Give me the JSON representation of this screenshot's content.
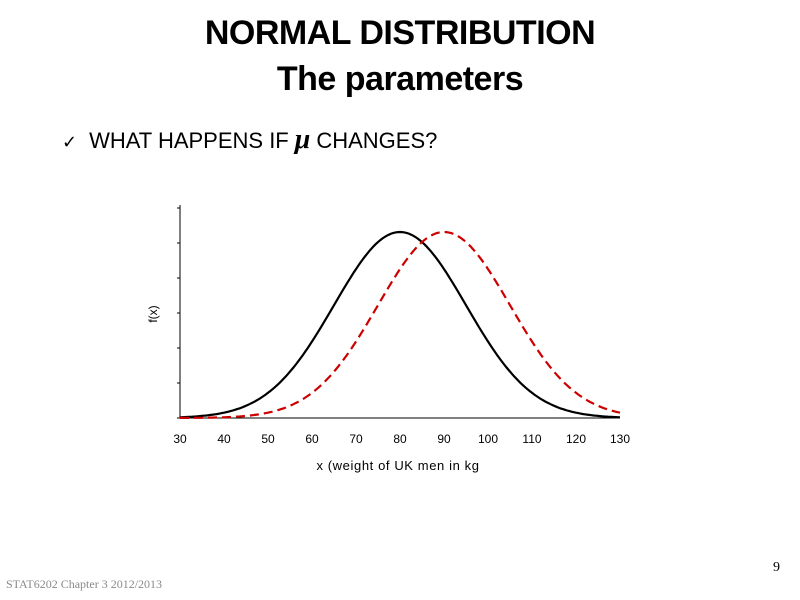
{
  "slide": {
    "title_line1": "NORMAL DISTRIBUTION",
    "title_line2": "The parameters",
    "bullet_prefix": "WHAT HAPPENS IF",
    "bullet_symbol": "μ",
    "bullet_suffix": "CHANGES?",
    "check_icon": "check-icon",
    "footer": "STAT6202 Chapter 3 2012/2013",
    "page_number": "9"
  },
  "chart_data": {
    "type": "line",
    "xlabel": "x (weight of UK men in kg",
    "ylabel": "f(x)",
    "xlim": [
      30,
      130
    ],
    "xticks": [
      "30",
      "40",
      "50",
      "60",
      "70",
      "80",
      "90",
      "100",
      "110",
      "120",
      "130"
    ],
    "grid": false,
    "series": [
      {
        "distribution": "normal",
        "mean": 80,
        "sd": 15,
        "color": "#000000",
        "style": "solid"
      },
      {
        "distribution": "normal",
        "mean": 90,
        "sd": 15,
        "color": "#cc0000",
        "style": "dashed"
      }
    ]
  }
}
